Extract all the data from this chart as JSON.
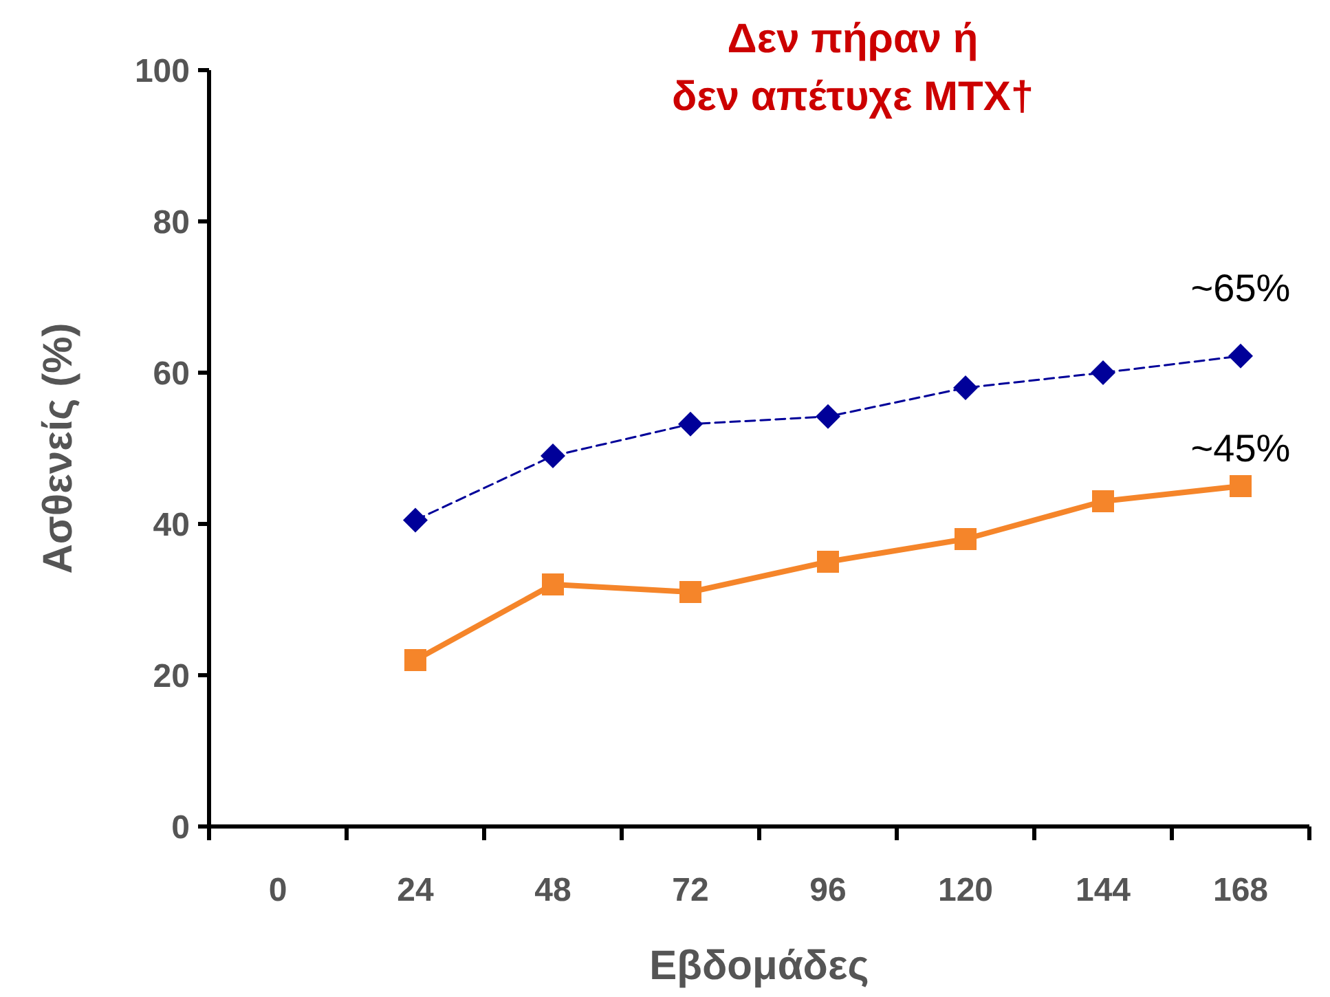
{
  "chart_data": {
    "type": "line",
    "title": "Δεν πήραν ή\nδεν απέτυχε MTX†",
    "xlabel": "Εβδομάδες",
    "ylabel": "Ασθενείς (%)",
    "categories": [
      "0",
      "24",
      "48",
      "72",
      "96",
      "120",
      "144",
      "168"
    ],
    "series": [
      {
        "color": "#000099",
        "values": [
          null,
          40.5,
          49,
          53.2,
          54.2,
          58,
          60,
          62.2
        ],
        "marker": "diamond",
        "line_style": "dashed"
      },
      {
        "color": "#f5852a",
        "values": [
          null,
          22,
          32,
          31,
          35,
          38,
          43,
          45
        ],
        "marker": "square",
        "line_style": "solid"
      }
    ],
    "ylim": [
      0,
      100
    ],
    "yticks": [
      0,
      20,
      40,
      60,
      80,
      100
    ],
    "grid": false,
    "annotations": [
      "~65%",
      "~45%"
    ]
  }
}
